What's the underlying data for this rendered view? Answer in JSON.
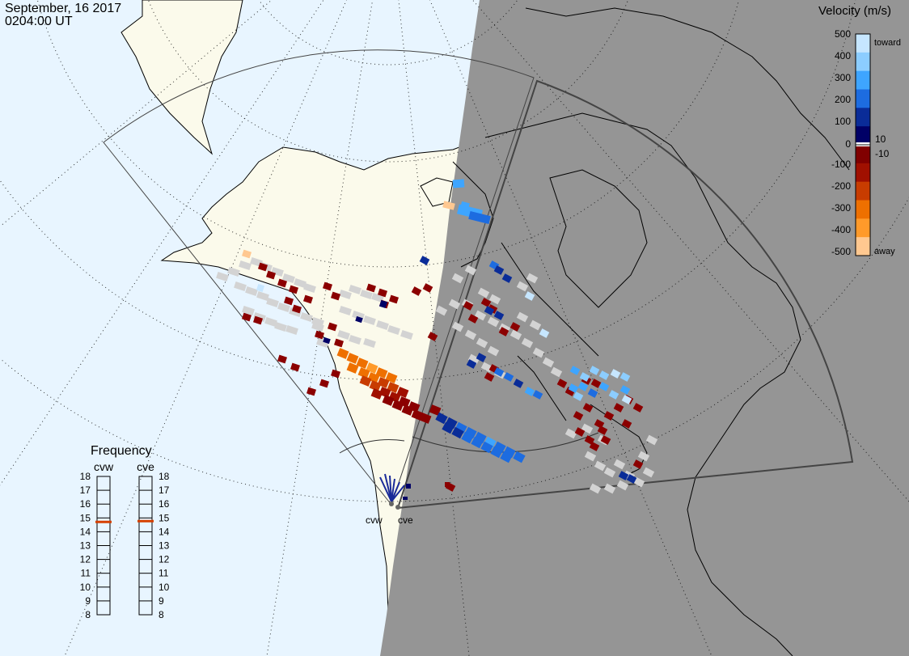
{
  "header": {
    "date": "September, 16 2017",
    "time": "0204:00 UT"
  },
  "colors": {
    "ocean": "#e8f5ff",
    "land": "#fbfaeb",
    "night": "#959595",
    "ground_scatter": "#d3d3d3"
  },
  "legend": {
    "title": "Velocity (m/s)",
    "tick_labels": [
      "500",
      "400",
      "300",
      "200",
      "100",
      "10",
      "0",
      "-10",
      "-100",
      "-200",
      "-300",
      "-400",
      "-500"
    ],
    "toward_label": "toward",
    "away_label": "away",
    "color_stops": [
      "#c6e6ff",
      "#8ccdff",
      "#3ea5ff",
      "#1d6ce0",
      "#0a2c98",
      "#000066",
      "#800000",
      "#a01000",
      "#c83c00",
      "#ee7000",
      "#ff9a2a",
      "#ffc890"
    ]
  },
  "frequency_panel": {
    "title": "Frequency",
    "radar_names": [
      "cvw",
      "cve"
    ],
    "scale_labels": [
      "18",
      "17",
      "16",
      "15",
      "14",
      "13",
      "12",
      "11",
      "10",
      "9",
      "8"
    ],
    "marker_value_mhz": 15
  },
  "radars": {
    "labels": [
      "cvw",
      "cve"
    ]
  }
}
